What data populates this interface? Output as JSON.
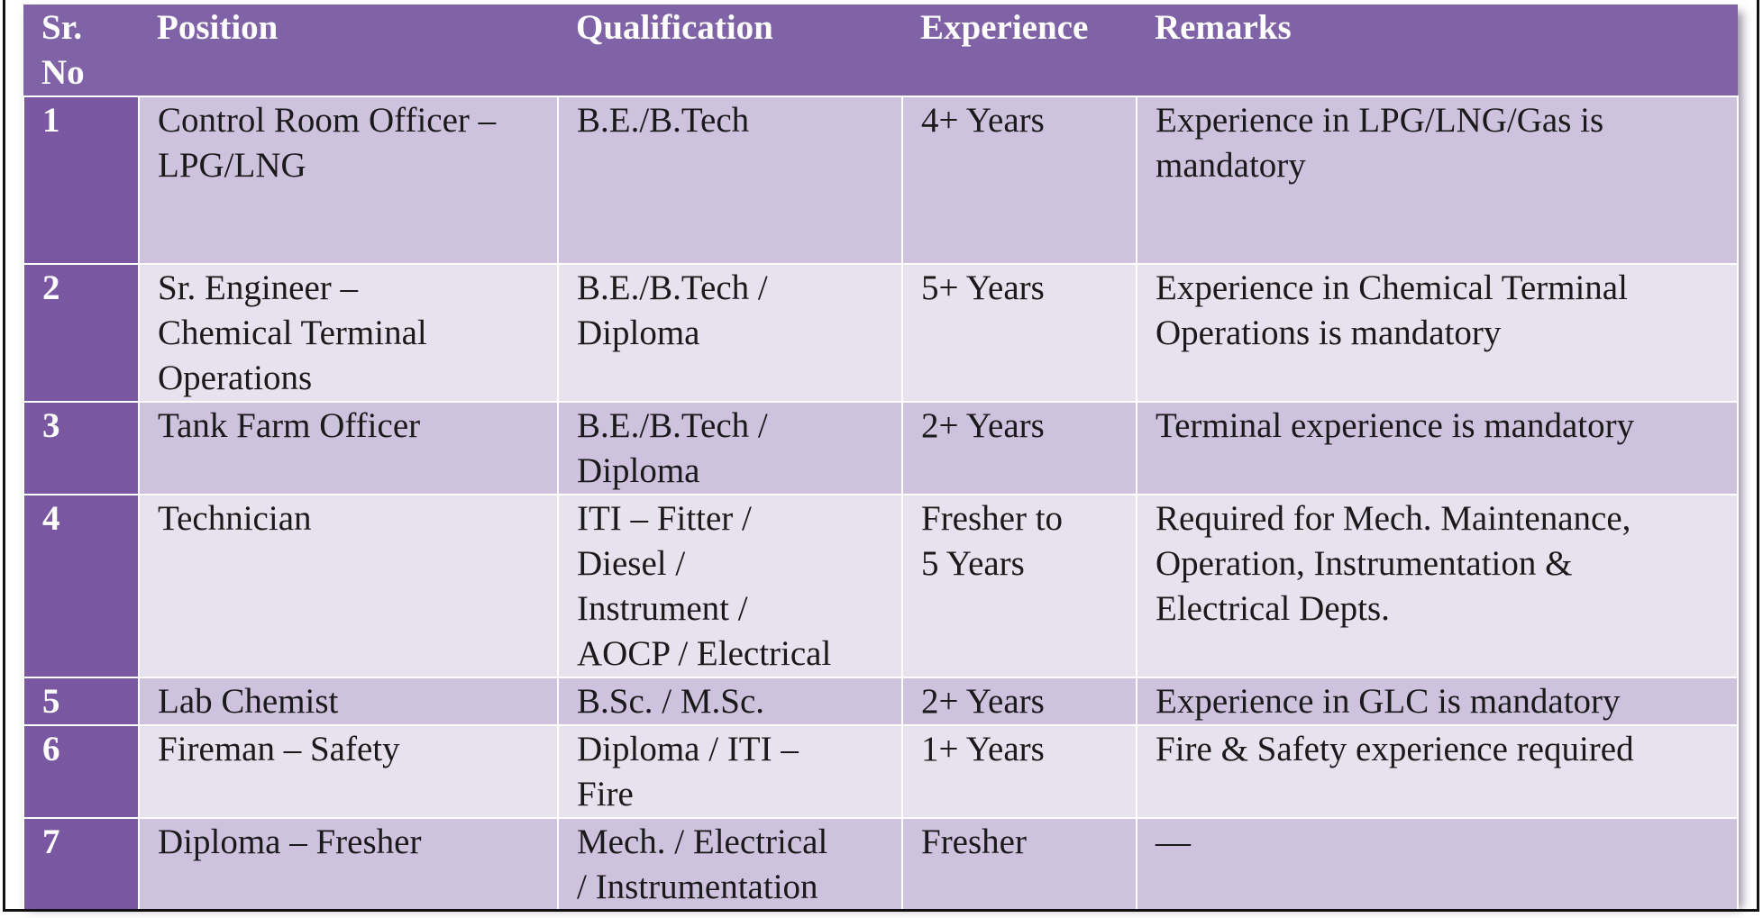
{
  "table": {
    "headers": [
      "Sr. No",
      "Position",
      "Qualification",
      "Experience",
      "Remarks"
    ],
    "rows": [
      {
        "sr": "1",
        "position": "Control Room Officer –\nLPG/LNG",
        "qualification": "B.E./B.Tech",
        "experience": "4+ Years",
        "remarks": "Experience in LPG/LNG/Gas is\nmandatory"
      },
      {
        "sr": "2",
        "position": "Sr. Engineer –\nChemical Terminal\nOperations",
        "qualification": "B.E./B.Tech /\nDiploma",
        "experience": "5+ Years",
        "remarks": "Experience in Chemical Terminal\nOperations is mandatory"
      },
      {
        "sr": "3",
        "position": "Tank Farm Officer",
        "qualification": "B.E./B.Tech /\nDiploma",
        "experience": "2+ Years",
        "remarks": "Terminal experience is mandatory"
      },
      {
        "sr": "4",
        "position": "Technician",
        "qualification": "ITI – Fitter /\nDiesel /\nInstrument /\nAOCP / Electrical",
        "experience": "Fresher to\n5 Years",
        "remarks": "Required for Mech. Maintenance,\nOperation, Instrumentation &\nElectrical Depts."
      },
      {
        "sr": "5",
        "position": "Lab Chemist",
        "qualification": "B.Sc. / M.Sc.",
        "experience": "2+ Years",
        "remarks": "Experience in GLC is mandatory"
      },
      {
        "sr": "6",
        "position": "Fireman – Safety",
        "qualification": "Diploma / ITI –\nFire",
        "experience": "1+ Years",
        "remarks": "Fire & Safety experience required"
      },
      {
        "sr": "7",
        "position": "Diploma – Fresher",
        "qualification": "Mech. / Electrical\n/ Instrumentation",
        "experience": "Fresher",
        "remarks": "—"
      }
    ]
  },
  "colors": {
    "header_bg": "#8062a6",
    "sr_column_bg": "#7a58a1",
    "row_band_dark": "#cfc2df",
    "row_band_light": "#e8e2ef"
  }
}
